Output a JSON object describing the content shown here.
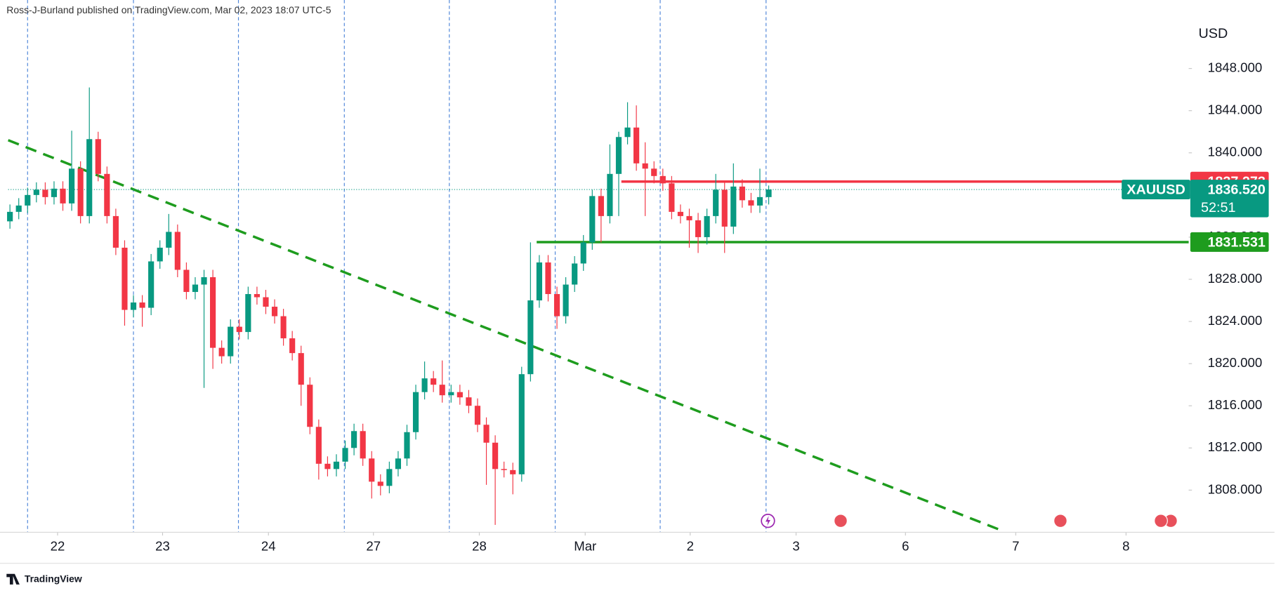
{
  "chart_data": {
    "type": "candlestick",
    "header": "Ross-J-Burland published on TradingView.com, Mar 02, 2023 18:07 UTC-5",
    "currency": "USD",
    "symbol": "XAUUSD",
    "last_price_label": "1836.520",
    "countdown": "52:51",
    "footer": "TradingView",
    "up_color": "#089981",
    "down_color": "#f23645",
    "last_price_color": "#089981",
    "xlim": [
      -0.2,
      133.6
    ],
    "ylim": [
      1804,
      1854.5
    ],
    "yticks": [
      {
        "value": 1808,
        "label": "1808.000"
      },
      {
        "value": 1812,
        "label": "1812.000"
      },
      {
        "value": 1816,
        "label": "1816.000"
      },
      {
        "value": 1820,
        "label": "1820.000"
      },
      {
        "value": 1824,
        "label": "1824.000"
      },
      {
        "value": 1828,
        "label": "1828.000"
      },
      {
        "value": 1832,
        "label": "1832.000"
      },
      {
        "value": 1836,
        "label": "1836.000"
      },
      {
        "value": 1840,
        "label": "1840.000"
      },
      {
        "value": 1844,
        "label": "1844.000"
      },
      {
        "value": 1848,
        "label": "1848.000"
      }
    ],
    "xticks": [
      {
        "value": 5.4,
        "label": "22"
      },
      {
        "value": 17.3,
        "label": "23"
      },
      {
        "value": 29.3,
        "label": "24"
      },
      {
        "value": 41.2,
        "label": "27"
      },
      {
        "value": 53.2,
        "label": "28"
      },
      {
        "value": 65.2,
        "label": "Mar"
      },
      {
        "value": 77.1,
        "label": "2"
      },
      {
        "value": 89.1,
        "label": "3"
      },
      {
        "value": 101.5,
        "label": "6"
      },
      {
        "value": 114,
        "label": "7"
      },
      {
        "value": 126.5,
        "label": "8"
      }
    ],
    "session_lines": [
      2.0,
      14.0,
      25.9,
      37.9,
      49.8,
      61.8,
      73.7,
      85.7
    ],
    "levels": [
      {
        "value": 1837.273,
        "color": "#f23645",
        "start": 69.3
      },
      {
        "value": 1831.531,
        "color": "#1e9c1e",
        "start": 59.7
      }
    ],
    "trendline": {
      "x": [
        -0.2,
        112
      ],
      "y": [
        1841.2,
        1804.3
      ],
      "color": "#1e9c1e"
    },
    "x": [
      0,
      1,
      2,
      3,
      4,
      5,
      6,
      7,
      8,
      9,
      10,
      11,
      12,
      13,
      14,
      15,
      16,
      17,
      18,
      19,
      20,
      21,
      22,
      23,
      24,
      25,
      26,
      27,
      28,
      29,
      30,
      31,
      32,
      33,
      34,
      35,
      36,
      37,
      38,
      39,
      40,
      41,
      42,
      43,
      44,
      45,
      46,
      47,
      48,
      49,
      50,
      51,
      52,
      53,
      54,
      55,
      56,
      57,
      58,
      59,
      60,
      61,
      62,
      63,
      64,
      65,
      66,
      67,
      68,
      69,
      70,
      71,
      72,
      73,
      74,
      75,
      76,
      77,
      78,
      79,
      80,
      81,
      82,
      83,
      84,
      85,
      86
    ],
    "open": [
      1833.5,
      1834.4,
      1835,
      1836,
      1836.5,
      1835.8,
      1836.6,
      1835.2,
      1838.5,
      1834,
      1841.3,
      1838,
      1834,
      1831,
      1825.1,
      1825.8,
      1825.3,
      1829.7,
      1831,
      1832.5,
      1828.9,
      1826.8,
      1827.5,
      1828.2,
      1821.5,
      1820.7,
      1823.5,
      1823,
      1826.6,
      1826.3,
      1825.4,
      1824.5,
      1822.4,
      1821,
      1818,
      1814,
      1810.5,
      1810,
      1810.7,
      1812,
      1813.6,
      1811,
      1808.8,
      1808.4,
      1810,
      1811,
      1813.5,
      1817.3,
      1818.6,
      1818,
      1817,
      1817.3,
      1816.8,
      1816,
      1814.2,
      1812.5,
      1810,
      1809.9,
      1809.5,
      1819,
      1826,
      1829.6,
      1826.6,
      1824.5,
      1827.5,
      1829.5,
      1831.5,
      1835.9,
      1834,
      1838,
      1841.5,
      1842.4,
      1839,
      1838.5,
      1837.8,
      1837.1,
      1834.4,
      1834,
      1833.6,
      1832,
      1834,
      1836.5,
      1833,
      1836.8,
      1835.5,
      1835,
      1835.8
    ],
    "high": [
      1835.1,
      1835.7,
      1836.7,
      1837.2,
      1837.2,
      1837.3,
      1837.3,
      1842.1,
      1839.2,
      1846.2,
      1842,
      1838.7,
      1834.7,
      1831.7,
      1826.5,
      1826.5,
      1830.4,
      1831.7,
      1834.2,
      1833.2,
      1829.6,
      1828.2,
      1828.9,
      1828.9,
      1822.2,
      1824.2,
      1824.2,
      1827.3,
      1827.3,
      1827,
      1826.1,
      1825.2,
      1823.1,
      1821.7,
      1818.7,
      1814.7,
      1811.2,
      1811.4,
      1812.7,
      1814.3,
      1814.3,
      1811.7,
      1809.5,
      1810.7,
      1811.7,
      1814.2,
      1818,
      1820.2,
      1819.3,
      1820.3,
      1818,
      1818,
      1817.5,
      1816.7,
      1814.9,
      1813.2,
      1810.7,
      1810.6,
      1819.7,
      1831.5,
      1830.3,
      1830.3,
      1827.3,
      1828.2,
      1830.2,
      1832.2,
      1836.5,
      1836.6,
      1840.8,
      1842,
      1844.8,
      1844.5,
      1841,
      1839.2,
      1838.5,
      1837.8,
      1835.1,
      1834.7,
      1834.3,
      1834.7,
      1838,
      1837.2,
      1839,
      1837.5,
      1836.2,
      1838.5,
      1836.9
    ],
    "low": [
      1832.8,
      1833.7,
      1834.3,
      1835.3,
      1835.1,
      1835.1,
      1834.5,
      1834.5,
      1833.3,
      1833.3,
      1837.3,
      1833.3,
      1830.3,
      1823.6,
      1824.4,
      1823.5,
      1824.6,
      1829,
      1830.3,
      1828.2,
      1826.1,
      1826.1,
      1817.7,
      1819.5,
      1820,
      1820,
      1822.3,
      1822.3,
      1825.6,
      1824.7,
      1823.8,
      1821.7,
      1820.3,
      1816,
      1813.3,
      1809,
      1809.3,
      1809.3,
      1810,
      1811.3,
      1810.3,
      1807.2,
      1807.5,
      1807.7,
      1809.3,
      1810.3,
      1812.8,
      1816.6,
      1817.3,
      1816.3,
      1816.3,
      1816.1,
      1815.3,
      1813.5,
      1808.5,
      1804.7,
      1809.2,
      1807.6,
      1808.8,
      1818.3,
      1825.3,
      1825.9,
      1823.3,
      1823.8,
      1826.8,
      1828.8,
      1830.8,
      1831.5,
      1833.3,
      1834,
      1840.8,
      1838.3,
      1834,
      1837.1,
      1836.4,
      1833.7,
      1833.3,
      1831,
      1830.5,
      1831.3,
      1833.3,
      1830.5,
      1832.3,
      1834.8,
      1834.3,
      1834.3,
      1835.1
    ],
    "close": [
      1834.4,
      1835,
      1836,
      1836.5,
      1835.8,
      1836.6,
      1835.2,
      1838.5,
      1834,
      1841.3,
      1838,
      1834,
      1831,
      1825.1,
      1825.8,
      1825.3,
      1829.7,
      1831,
      1832.5,
      1828.9,
      1826.8,
      1827.5,
      1828.2,
      1821.5,
      1820.7,
      1823.5,
      1823,
      1826.6,
      1826.3,
      1825.4,
      1824.5,
      1822.4,
      1821,
      1818,
      1814,
      1810.5,
      1810,
      1810.7,
      1812,
      1813.6,
      1811,
      1808.8,
      1808.4,
      1810,
      1811,
      1813.5,
      1817.3,
      1818.6,
      1818,
      1817,
      1817.3,
      1816.8,
      1816,
      1814.2,
      1812.5,
      1810,
      1809.9,
      1809.5,
      1819,
      1826,
      1829.6,
      1826.6,
      1824.5,
      1827.5,
      1829.5,
      1831.5,
      1835.9,
      1834,
      1838,
      1841.5,
      1842.4,
      1839,
      1838.5,
      1837.8,
      1837.1,
      1834.4,
      1834,
      1833.6,
      1832,
      1834,
      1836.5,
      1833,
      1836.8,
      1835.5,
      1835,
      1835.8,
      1836.52
    ]
  }
}
